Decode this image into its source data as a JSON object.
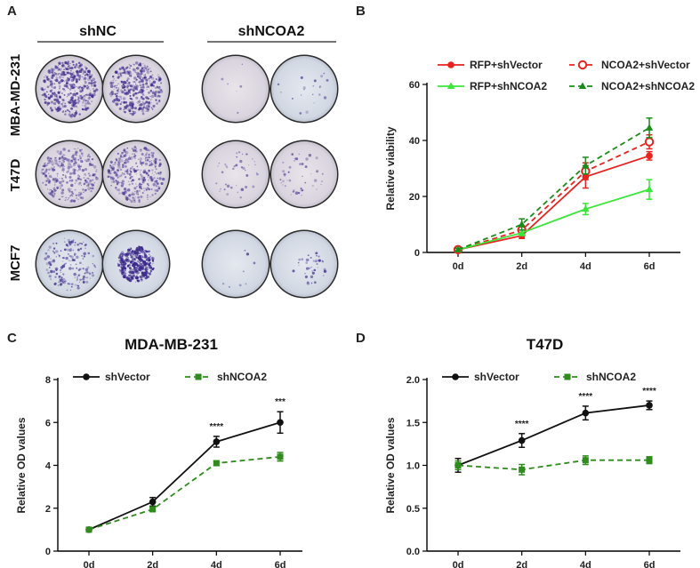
{
  "panel_letters": {
    "a": "A",
    "b": "B",
    "c": "C",
    "d": "D"
  },
  "colony_panel": {
    "groups": [
      "shNC",
      "shNCOA2"
    ],
    "rows": [
      "MBA-MD-231",
      "T47D",
      "MCF7"
    ]
  },
  "colors": {
    "red": "#e8231f",
    "green_light": "#39e639",
    "green_dark": "#1b8c1b",
    "black": "#111111",
    "olive": "#2e8b1c",
    "crystal_violet": "#3d2a8c"
  },
  "chart_data": [
    {
      "panel": "B",
      "type": "line",
      "title": "",
      "categories": [
        "0d",
        "2d",
        "4d",
        "6d"
      ],
      "ylabel": "Relative viability",
      "xlabel": "",
      "ylim": [
        0,
        60
      ],
      "yticks": [
        "0",
        "20",
        "40",
        "60"
      ],
      "legend_position": "top",
      "series": [
        {
          "name": "RFP+shVector",
          "values": [
            1,
            6,
            27,
            34.5
          ],
          "errors": [
            0.5,
            1,
            4,
            1.5
          ],
          "color": "#e8231f",
          "dash": "solid",
          "marker": "circle"
        },
        {
          "name": "NCOA2+shVector",
          "values": [
            1,
            8,
            29,
            39.5
          ],
          "errors": [
            0.5,
            1.5,
            3,
            2.5
          ],
          "color": "#e8231f",
          "dash": "dashed",
          "marker": "open-circle"
        },
        {
          "name": "RFP+shNCOA2",
          "values": [
            1,
            7,
            15.5,
            22.5
          ],
          "errors": [
            0.5,
            1,
            2,
            3.5
          ],
          "color": "#39e639",
          "dash": "solid",
          "marker": "triangle"
        },
        {
          "name": "NCOA2+shNCOA2",
          "values": [
            1,
            10,
            31,
            44.5
          ],
          "errors": [
            0.5,
            2,
            3,
            3.5
          ],
          "color": "#1b8c1b",
          "dash": "dashed",
          "marker": "triangle"
        }
      ]
    },
    {
      "panel": "C",
      "type": "line",
      "title": "MDA-MB-231",
      "categories": [
        "0d",
        "2d",
        "4d",
        "6d"
      ],
      "ylabel": "Relative OD values",
      "xlabel": "",
      "ylim": [
        0,
        8
      ],
      "yticks": [
        "0",
        "2",
        "4",
        "6",
        "8"
      ],
      "legend_position": "top",
      "series": [
        {
          "name": "shVector",
          "values": [
            1,
            2.3,
            5.1,
            6
          ],
          "errors": [
            0.05,
            0.2,
            0.25,
            0.5
          ],
          "color": "#111111",
          "dash": "solid",
          "marker": "circle"
        },
        {
          "name": "shNCOA2",
          "values": [
            1,
            1.95,
            4.1,
            4.4
          ],
          "errors": [
            0.05,
            0.1,
            0.1,
            0.2
          ],
          "color": "#2e8b1c",
          "dash": "dashed",
          "marker": "square"
        }
      ],
      "annotations": [
        {
          "category": "4d",
          "text": "****"
        },
        {
          "category": "6d",
          "text": "***"
        }
      ]
    },
    {
      "panel": "D",
      "type": "line",
      "title": "T47D",
      "categories": [
        "0d",
        "2d",
        "4d",
        "6d"
      ],
      "ylabel": "Relative OD values",
      "xlabel": "",
      "ylim": [
        0,
        2.0
      ],
      "yticks": [
        "0.0",
        "0.5",
        "1.0",
        "1.5",
        "2.0"
      ],
      "legend_position": "top",
      "series": [
        {
          "name": "shVector",
          "values": [
            1,
            1.29,
            1.61,
            1.7
          ],
          "errors": [
            0.08,
            0.08,
            0.08,
            0.05
          ],
          "color": "#111111",
          "dash": "solid",
          "marker": "circle"
        },
        {
          "name": "shNCOA2",
          "values": [
            1,
            0.95,
            1.06,
            1.06
          ],
          "errors": [
            0.05,
            0.06,
            0.05,
            0.04
          ],
          "color": "#2e8b1c",
          "dash": "dashed",
          "marker": "square"
        }
      ],
      "annotations": [
        {
          "category": "2d",
          "text": "****"
        },
        {
          "category": "4d",
          "text": "****"
        },
        {
          "category": "6d",
          "text": "****"
        }
      ]
    }
  ]
}
